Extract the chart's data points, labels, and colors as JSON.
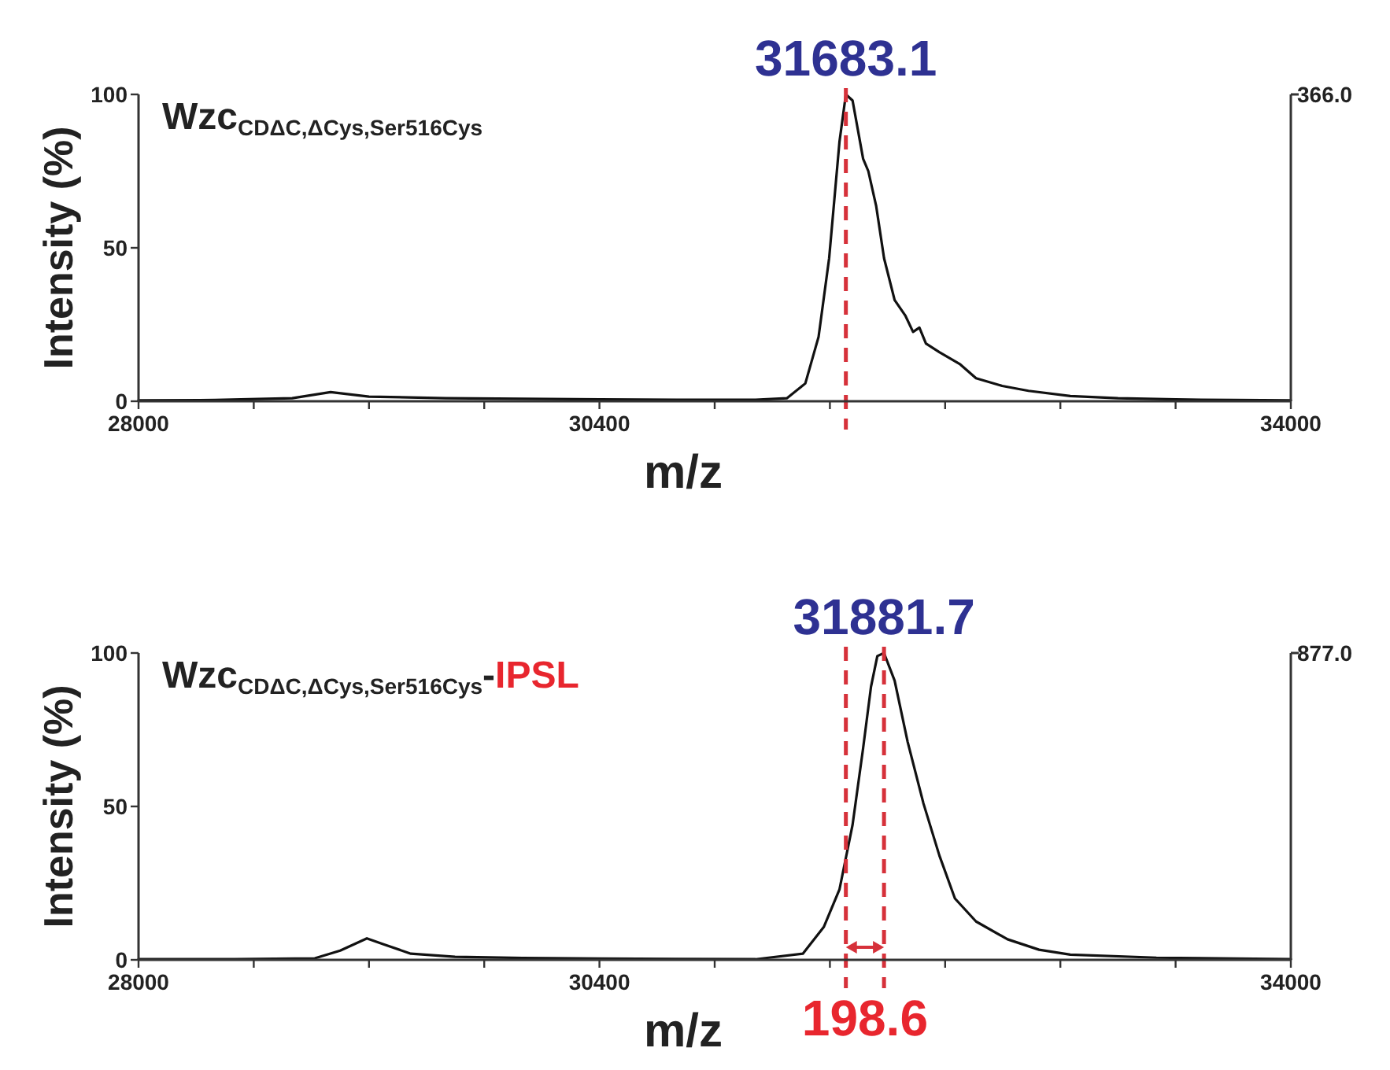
{
  "chart_data": [
    {
      "type": "line",
      "title": "Wzc$_{CDΔC,ΔCys,Ser516Cys}$",
      "xlabel": "m/z",
      "ylabel": "Intensity (%)",
      "xlim": [
        28000,
        34000
      ],
      "xticks": [
        28000,
        {
          "value": 28600,
          "label": null
        },
        {
          "value": 29200,
          "label": null
        },
        {
          "value": 29800,
          "label": null
        },
        30400,
        {
          "value": 31000,
          "label": null
        },
        {
          "value": 31600,
          "label": null
        },
        {
          "value": 32200,
          "label": null
        },
        {
          "value": 32800,
          "label": null
        },
        {
          "value": 33400,
          "label": null
        },
        34000
      ],
      "ylim": [
        0,
        100
      ],
      "yticks": [
        0,
        50,
        100
      ],
      "grid": false,
      "marker": "none",
      "line_style": "solid",
      "series": [
        {
          "color": "#111111",
          "x": [
            28000,
            28400,
            28800,
            29000,
            29200,
            29600,
            30000,
            30400,
            30800,
            31213,
            31377,
            31472,
            31541,
            31596,
            31650,
            31683.1,
            31718,
            31773,
            31800,
            31841,
            31882,
            31937,
            31992,
            32033,
            32066,
            32100,
            32170,
            32279,
            32361,
            32497,
            32634,
            32852,
            33100,
            33400,
            33700,
            34000
          ],
          "values": [
            0.3,
            0.4,
            1,
            3,
            1.5,
            1,
            0.8,
            0.6,
            0.5,
            0.5,
            1,
            5.8,
            21,
            46.6,
            84.7,
            100,
            98,
            79,
            75,
            63.6,
            46.6,
            33,
            28,
            22.6,
            24,
            18.8,
            16,
            12,
            7.5,
            5,
            3.4,
            1.7,
            1,
            0.6,
            0.4,
            0.3
          ]
        }
      ],
      "ref_lines": [
        {
          "axis": "x",
          "value": 31683.1,
          "color": "#d6313a",
          "line_style": "dashed"
        }
      ],
      "annotations": [
        "366.0",
        {
          "text": "31683.1",
          "x": 31683.1,
          "y": 100
        }
      ]
    },
    {
      "type": "line",
      "title": "Wzc$_{CDΔC,ΔCys,Ser516Cys}$-IPSL",
      "xlabel": "m/z",
      "ylabel": "Intensity (%)",
      "xlim": [
        28000,
        34000
      ],
      "xticks": [
        28000,
        {
          "value": 28600,
          "label": null
        },
        {
          "value": 29200,
          "label": null
        },
        {
          "value": 29800,
          "label": null
        },
        30400,
        {
          "value": 31000,
          "label": null
        },
        {
          "value": 31600,
          "label": null
        },
        {
          "value": 32200,
          "label": null
        },
        {
          "value": 32800,
          "label": null
        },
        {
          "value": 33400,
          "label": null
        },
        34000
      ],
      "ylim": [
        0,
        100
      ],
      "yticks": [
        0,
        50,
        100
      ],
      "grid": false,
      "marker": "none",
      "line_style": "solid",
      "series": [
        {
          "color": "#111111",
          "x": [
            28000,
            28500,
            28918,
            29050,
            29189,
            29279,
            29418,
            29648,
            30000,
            30400,
            30800,
            31213,
            31459,
            31568,
            31650,
            31718,
            31773,
            31814,
            31847,
            31881.7,
            31937,
            32005,
            32087,
            32170,
            32251,
            32361,
            32525,
            32689,
            32852,
            33300,
            34000
          ],
          "values": [
            0.2,
            0.2,
            0.5,
            3,
            7,
            5,
            2,
            1,
            0.6,
            0.4,
            0.3,
            0.2,
            2,
            10.7,
            23,
            44,
            69,
            89,
            99,
            100,
            91,
            71,
            51,
            34,
            20,
            12.5,
            6.7,
            3.3,
            1.7,
            0.7,
            0.2
          ]
        }
      ],
      "ref_lines": [
        {
          "axis": "x",
          "value": 31683.1,
          "color": "#d6313a",
          "line_style": "dashed"
        },
        {
          "axis": "x",
          "value": 31881.7,
          "color": "#d6313a",
          "line_style": "dashed"
        }
      ],
      "annotations": [
        "877.0",
        {
          "text": "31881.7",
          "x": 31881.7,
          "y": 100
        },
        "198.6"
      ]
    }
  ]
}
